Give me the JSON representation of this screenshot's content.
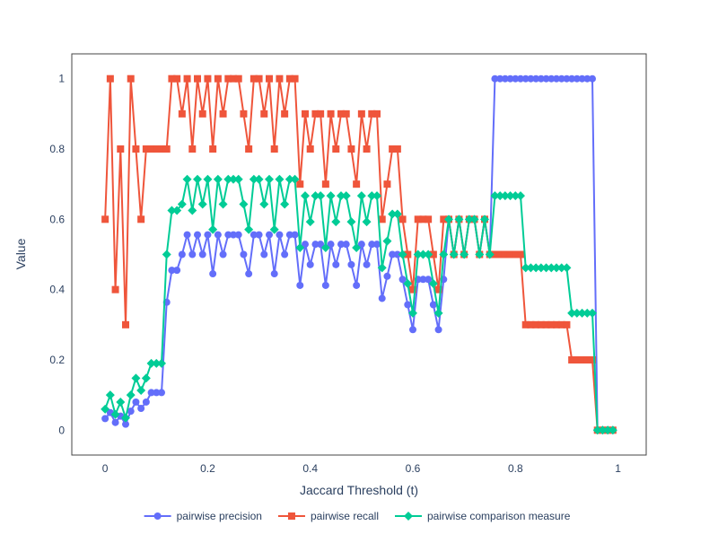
{
  "chart_data": {
    "type": "line",
    "xlabel": "Jaccard Threshold (t)",
    "ylabel": "Value",
    "xlim": [
      -0.065,
      1.055
    ],
    "ylim": [
      -0.0707,
      1.0707
    ],
    "xticks": [
      0,
      0.2,
      0.4,
      0.6,
      0.8,
      1
    ],
    "xtick_labels": [
      "0",
      "0.2",
      "0.4",
      "0.6",
      "0.8",
      "1"
    ],
    "yticks": [
      0,
      0.2,
      0.4,
      0.6,
      0.8,
      1
    ],
    "ytick_labels": [
      "0",
      "0.2",
      "0.4",
      "0.6",
      "0.8",
      "1"
    ],
    "grid": false,
    "legend_position": "bottom-center",
    "x": [
      0,
      0.01,
      0.02,
      0.03,
      0.04,
      0.05,
      0.06,
      0.07,
      0.08,
      0.09,
      0.1,
      0.11,
      0.12,
      0.13,
      0.14,
      0.15,
      0.16,
      0.17,
      0.18,
      0.19,
      0.2,
      0.21,
      0.22,
      0.23,
      0.24,
      0.25,
      0.26,
      0.27,
      0.28,
      0.29,
      0.3,
      0.31,
      0.32,
      0.33,
      0.34,
      0.35,
      0.36,
      0.37,
      0.38,
      0.39,
      0.4,
      0.41,
      0.42,
      0.43,
      0.44,
      0.45,
      0.46,
      0.47,
      0.48,
      0.49,
      0.5,
      0.51,
      0.52,
      0.53,
      0.54,
      0.55,
      0.56,
      0.57,
      0.58,
      0.59,
      0.6,
      0.61,
      0.62,
      0.63,
      0.64,
      0.65,
      0.66,
      0.67,
      0.68,
      0.69,
      0.7,
      0.71,
      0.72,
      0.73,
      0.74,
      0.75,
      0.76,
      0.77,
      0.78,
      0.79,
      0.8,
      0.81,
      0.82,
      0.83,
      0.84,
      0.85,
      0.86,
      0.87,
      0.88,
      0.89,
      0.9,
      0.91,
      0.92,
      0.93,
      0.94,
      0.95,
      0.96,
      0.97,
      0.98,
      0.99
    ],
    "series": [
      {
        "name": "pairwise precision",
        "color": "#636efa",
        "marker": "circle",
        "values": [
          0.033,
          0.05,
          0.022,
          0.04,
          0.017,
          0.054,
          0.08,
          0.062,
          0.08,
          0.107,
          0.107,
          0.107,
          0.364,
          0.455,
          0.455,
          0.5,
          0.556,
          0.5,
          0.556,
          0.5,
          0.556,
          0.445,
          0.556,
          0.5,
          0.556,
          0.556,
          0.556,
          0.5,
          0.445,
          0.556,
          0.556,
          0.5,
          0.556,
          0.445,
          0.556,
          0.5,
          0.556,
          0.556,
          0.412,
          0.529,
          0.471,
          0.529,
          0.529,
          0.412,
          0.529,
          0.471,
          0.529,
          0.529,
          0.471,
          0.412,
          0.529,
          0.471,
          0.529,
          0.529,
          0.375,
          0.438,
          0.5,
          0.5,
          0.429,
          0.357,
          0.286,
          0.429,
          0.429,
          0.429,
          0.357,
          0.286,
          0.429,
          0.6,
          0.5,
          0.6,
          0.5,
          0.6,
          0.6,
          0.5,
          0.6,
          0.5,
          1,
          1,
          1,
          1,
          1,
          1,
          1,
          1,
          1,
          1,
          1,
          1,
          1,
          1,
          1,
          1,
          1,
          1,
          1,
          1,
          0,
          0,
          0,
          0
        ]
      },
      {
        "name": "pairwise recall",
        "color": "#ef553b",
        "marker": "square",
        "values": [
          0.6,
          1,
          0.4,
          0.8,
          0.3,
          1,
          0.8,
          0.6,
          0.8,
          0.8,
          0.8,
          0.8,
          0.8,
          1,
          1,
          0.9,
          1,
          0.8,
          1,
          0.9,
          1,
          0.8,
          1,
          0.9,
          1,
          1,
          1,
          0.9,
          0.8,
          1,
          1,
          0.9,
          1,
          0.8,
          1,
          0.9,
          1,
          1,
          0.7,
          0.9,
          0.8,
          0.9,
          0.9,
          0.7,
          0.9,
          0.8,
          0.9,
          0.9,
          0.8,
          0.7,
          0.9,
          0.8,
          0.9,
          0.9,
          0.6,
          0.7,
          0.8,
          0.8,
          0.6,
          0.5,
          0.4,
          0.6,
          0.6,
          0.6,
          0.5,
          0.4,
          0.6,
          0.6,
          0.5,
          0.6,
          0.5,
          0.6,
          0.6,
          0.5,
          0.6,
          0.5,
          0.5,
          0.5,
          0.5,
          0.5,
          0.5,
          0.5,
          0.3,
          0.3,
          0.3,
          0.3,
          0.3,
          0.3,
          0.3,
          0.3,
          0.3,
          0.2,
          0.2,
          0.2,
          0.2,
          0.2,
          0,
          0,
          0,
          0
        ]
      },
      {
        "name": "pairwise comparison measure",
        "color": "#00cc96",
        "marker": "diamond",
        "values": [
          0.06,
          0.1,
          0.045,
          0.08,
          0.035,
          0.1,
          0.148,
          0.113,
          0.148,
          0.19,
          0.19,
          0.19,
          0.5,
          0.625,
          0.625,
          0.643,
          0.714,
          0.625,
          0.714,
          0.643,
          0.714,
          0.571,
          0.714,
          0.643,
          0.714,
          0.714,
          0.714,
          0.643,
          0.571,
          0.714,
          0.714,
          0.643,
          0.714,
          0.571,
          0.714,
          0.643,
          0.714,
          0.714,
          0.519,
          0.667,
          0.593,
          0.667,
          0.667,
          0.519,
          0.667,
          0.593,
          0.667,
          0.667,
          0.593,
          0.519,
          0.667,
          0.593,
          0.667,
          0.667,
          0.462,
          0.538,
          0.615,
          0.615,
          0.5,
          0.417,
          0.333,
          0.5,
          0.5,
          0.5,
          0.417,
          0.333,
          0.5,
          0.6,
          0.5,
          0.6,
          0.5,
          0.6,
          0.6,
          0.5,
          0.6,
          0.5,
          0.667,
          0.667,
          0.667,
          0.667,
          0.667,
          0.667,
          0.462,
          0.462,
          0.462,
          0.462,
          0.462,
          0.462,
          0.462,
          0.462,
          0.462,
          0.333,
          0.333,
          0.333,
          0.333,
          0.333,
          0,
          0,
          0,
          0
        ]
      }
    ]
  }
}
